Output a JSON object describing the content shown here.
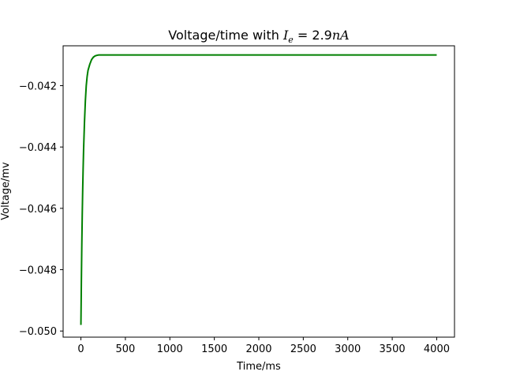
{
  "chart_data": {
    "type": "line",
    "title": "Voltage/time with I_e = 2.9nA",
    "title_parts": {
      "prefix": "Voltage/time with ",
      "var": "I",
      "sub": "e",
      "rest": " = 2.9",
      "unit": "nA"
    },
    "xlabel": "Time/ms",
    "ylabel": "Voltage/mv",
    "xlim": [
      -200,
      4200
    ],
    "ylim": [
      -0.0502,
      -0.0407
    ],
    "xticks": [
      0,
      500,
      1000,
      1500,
      2000,
      2500,
      3000,
      3500,
      4000
    ],
    "xtick_labels": [
      "0",
      "500",
      "1000",
      "1500",
      "2000",
      "2500",
      "3000",
      "3500",
      "4000"
    ],
    "yticks": [
      -0.05,
      -0.048,
      -0.046,
      -0.044,
      -0.042
    ],
    "ytick_labels": [
      "−0.050",
      "−0.048",
      "−0.046",
      "−0.044",
      "−0.042"
    ],
    "grid": false,
    "series": [
      {
        "color": "#008000",
        "x": [
          0,
          5,
          10,
          15,
          20,
          25,
          30,
          40,
          50,
          60,
          70,
          80,
          90,
          100,
          120,
          140,
          160,
          180,
          200,
          250,
          300,
          400,
          500,
          1000,
          2000,
          3000,
          4000
        ],
        "y": [
          -0.0498,
          -0.0484,
          -0.0472,
          -0.0462,
          -0.0454,
          -0.0447,
          -0.0441,
          -0.0432,
          -0.0425,
          -0.042,
          -0.0417,
          -0.0415,
          -0.0414,
          -0.0413,
          -0.04115,
          -0.04107,
          -0.04103,
          -0.04101,
          -0.041,
          -0.041,
          -0.041,
          -0.041,
          -0.041,
          -0.041,
          -0.041,
          -0.041,
          -0.041
        ]
      }
    ]
  }
}
